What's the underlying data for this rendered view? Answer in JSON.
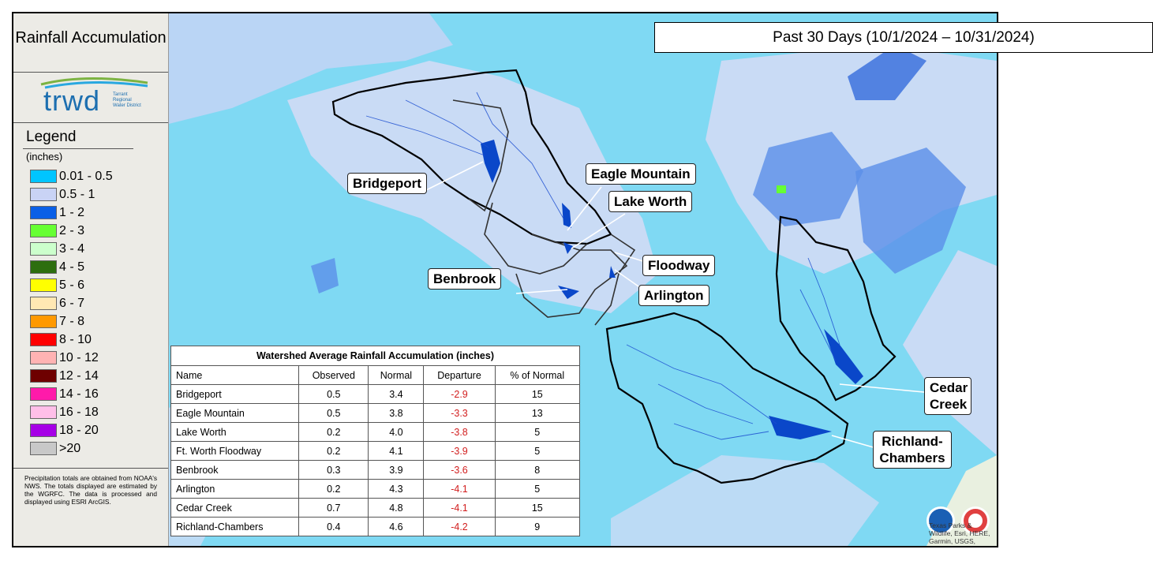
{
  "sidebar": {
    "title": "Rainfall Accumulation",
    "logo": {
      "name": "trwd",
      "tagline": "Tarrant Regional Water District"
    },
    "legend": {
      "title": "Legend",
      "units": "(inches)",
      "items": [
        {
          "label": "0.01 - 0.5",
          "color": "#00c5ff"
        },
        {
          "label": "0.5 - 1",
          "color": "#c9d3f5"
        },
        {
          "label": "1 - 2",
          "color": "#0a5fe6"
        },
        {
          "label": "2 - 3",
          "color": "#66ff33"
        },
        {
          "label": "3 - 4",
          "color": "#ccffcc"
        },
        {
          "label": "4 - 5",
          "color": "#2d6e0f"
        },
        {
          "label": "5 - 6",
          "color": "#ffff00"
        },
        {
          "label": "6 - 7",
          "color": "#ffe8b3"
        },
        {
          "label": "7 - 8",
          "color": "#ff9900"
        },
        {
          "label": "8 - 10",
          "color": "#ff0000"
        },
        {
          "label": "10 - 12",
          "color": "#ffb3b3"
        },
        {
          "label": "12 - 14",
          "color": "#6e0000"
        },
        {
          "label": "14 - 16",
          "color": "#ff1aaa"
        },
        {
          "label": "16 - 18",
          "color": "#ffbfe8"
        },
        {
          "label": "18 - 20",
          "color": "#a600e6"
        },
        {
          "label": ">20",
          "color": "#c8c8c8"
        }
      ]
    },
    "note": "Precipitation totals are obtained from NOAA's NWS. The totals displayed are estimated by the WGRFC. The data is processed and displayed using ESRI ArcGIS."
  },
  "map": {
    "period": "Past 30 Days (10/1/2024 – 10/31/2024)",
    "labels": [
      "Bridgeport",
      "Eagle Mountain",
      "Lake Worth",
      "Floodway",
      "Benbrook",
      "Arlington",
      "Cedar Creek",
      "Richland-Chambers"
    ],
    "attribution": "Texas Parks & Wildlife, Esri, HERE, Garmin, USGS,"
  },
  "table": {
    "title": "Watershed Average Rainfall Accumulation (inches)",
    "columns": [
      "Name",
      "Observed",
      "Normal",
      "Departure",
      "% of Normal"
    ],
    "rows": [
      [
        "Bridgeport",
        "0.5",
        "3.4",
        "-2.9",
        "15"
      ],
      [
        "Eagle Mountain",
        "0.5",
        "3.8",
        "-3.3",
        "13"
      ],
      [
        "Lake Worth",
        "0.2",
        "4.0",
        "-3.8",
        "5"
      ],
      [
        "Ft. Worth Floodway",
        "0.2",
        "4.1",
        "-3.9",
        "5"
      ],
      [
        "Benbrook",
        "0.3",
        "3.9",
        "-3.6",
        "8"
      ],
      [
        "Arlington",
        "0.2",
        "4.3",
        "-4.1",
        "5"
      ],
      [
        "Cedar Creek",
        "0.7",
        "4.8",
        "-4.1",
        "15"
      ],
      [
        "Richland-Chambers",
        "0.4",
        "4.6",
        "-4.2",
        "9"
      ]
    ]
  }
}
